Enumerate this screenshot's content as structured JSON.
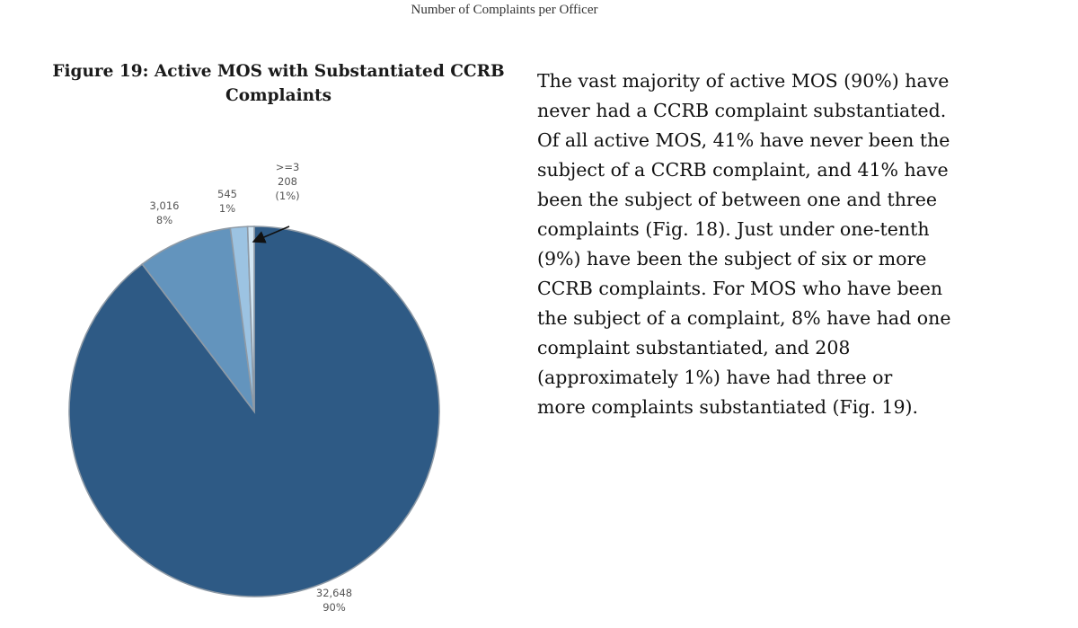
{
  "header": {
    "running_title": "Number of Complaints per Officer"
  },
  "figure": {
    "title_line1": "Figure 19: Active MOS with Substantiated CCRB",
    "title_line2": "Complaints"
  },
  "chart_data": {
    "type": "pie",
    "title": "Figure 19: Active MOS with Substantiated CCRB Complaints",
    "slices": [
      {
        "count": "32,648",
        "value": 32648,
        "percent": "90%",
        "color": "#2e5a85"
      },
      {
        "count": "3,016",
        "value": 3016,
        "percent": "8%",
        "color": "#6394bd"
      },
      {
        "count": "545",
        "value": 545,
        "percent": "1%",
        "color": "#9cc3e2"
      },
      {
        "category": ">=3",
        "count": "208",
        "value": 208,
        "percent": "(1%)",
        "color": "#d2e6f4"
      }
    ],
    "edge_color": "#8e9aa6"
  },
  "text": {
    "paragraph": "The vast majority of active MOS (90%) have\nnever had a CCRB complaint substantiated.\nOf all active MOS, 41% have never been the\nsubject of a CCRB complaint, and 41% have\nbeen the subject of between one and three\ncomplaints (Fig. 18). Just under one-tenth\n(9%) have been the subject of six or more\nCCRB complaints. For MOS who have been\nthe subject of a complaint, 8% have had one\ncomplaint substantiated, and 208\n(approximately 1%) have had three or\nmore complaints substantiated (Fig. 19)."
  }
}
